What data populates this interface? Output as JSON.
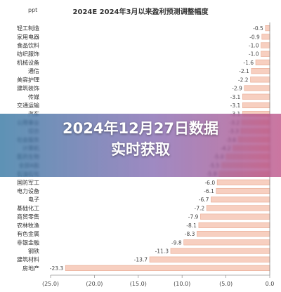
{
  "chart_data": {
    "type": "bar",
    "orientation": "horizontal",
    "title": "2024E 2024年3月以来盈利预测调整幅度",
    "unit_label": "ppt",
    "categories": [
      "轻工制造",
      "家用电器",
      "食品饮料",
      "纺织服饰",
      "机械设备",
      "通信",
      "美容护理",
      "建筑装饰",
      "传媒",
      "交通运输",
      "汽车",
      "公用事业",
      "综合",
      "社会服务",
      "计算机",
      "医药生物",
      "全部A股",
      "石油石化",
      "国防军工",
      "电力设备",
      "电子",
      "基础化工",
      "商贸零售",
      "农林牧渔",
      "有色金属",
      "非银金融",
      "钢铁",
      "建筑材料",
      "房地产"
    ],
    "values": [
      -0.5,
      -0.9,
      -1.0,
      -1.0,
      -1.6,
      -2.1,
      -2.2,
      -2.9,
      -3.1,
      -3.1,
      -3.1,
      -3.2,
      -3.3,
      -3.6,
      -4.2,
      -5.0,
      -5.5,
      -5.8,
      -6.0,
      -6.1,
      -6.7,
      -7.2,
      -7.9,
      -8.1,
      -8.3,
      -9.8,
      -11.3,
      -13.7,
      -23.3
    ],
    "value_labels": [
      "-0.5",
      "-0.9",
      "-1.0",
      "-1.0",
      "-1.6",
      "-2.1",
      "-2.2",
      "-2.9",
      "-3.1",
      "-3.1",
      "-3.1",
      "-3.2",
      "-3.3",
      "-3.6",
      "-4.2",
      "-5.0",
      "-5.5",
      "-5.8",
      "-6.0",
      "-6.1",
      "-6.7",
      "-7.2",
      "-7.9",
      "-8.1",
      "-8.3",
      "-9.8",
      "-11.3",
      "-13.7",
      "-23.3"
    ],
    "xlim": [
      -25.0,
      0.0
    ],
    "xticks": [
      -25.0,
      -20.0,
      -15.0,
      -10.0,
      -5.0,
      0.0
    ],
    "xtick_labels": [
      "(25.0)",
      "(20.0)",
      "(15.0)",
      "(10.0)",
      "(5.0)",
      "0.0"
    ],
    "bar_color": "#f7cfc0",
    "bar_border_color": "#e8a890",
    "grid": false
  },
  "overlay": {
    "line1": "2024年12月27日数据",
    "line2": "实时获取"
  }
}
